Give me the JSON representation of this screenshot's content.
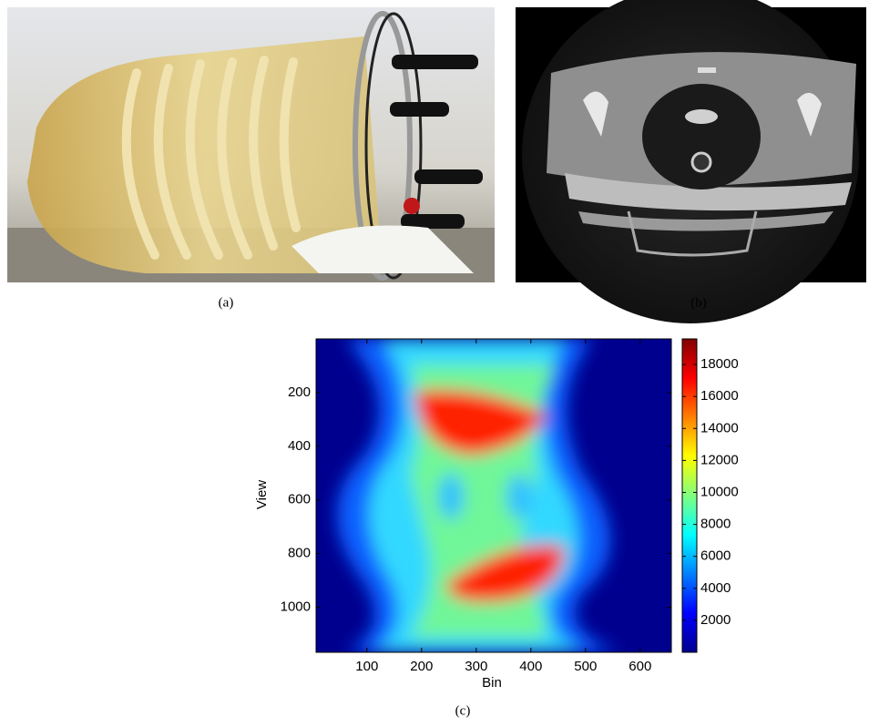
{
  "panels": [
    {
      "label": "(a)"
    },
    {
      "label": "(b)"
    }
  ],
  "chart_data": {
    "type": "heatmap",
    "caption": "(c)",
    "xlabel": "Bin",
    "ylabel": "View",
    "xlim": [
      7,
      657
    ],
    "xticks": [
      100,
      200,
      300,
      400,
      500,
      600
    ],
    "ylim": [
      0,
      1168
    ],
    "yticks": [
      200,
      400,
      600,
      800,
      1000
    ],
    "colorbar": {
      "lim": [
        0,
        19600
      ],
      "ticks": [
        2000,
        4000,
        6000,
        8000,
        10000,
        12000,
        14000,
        16000,
        18000
      ]
    }
  }
}
